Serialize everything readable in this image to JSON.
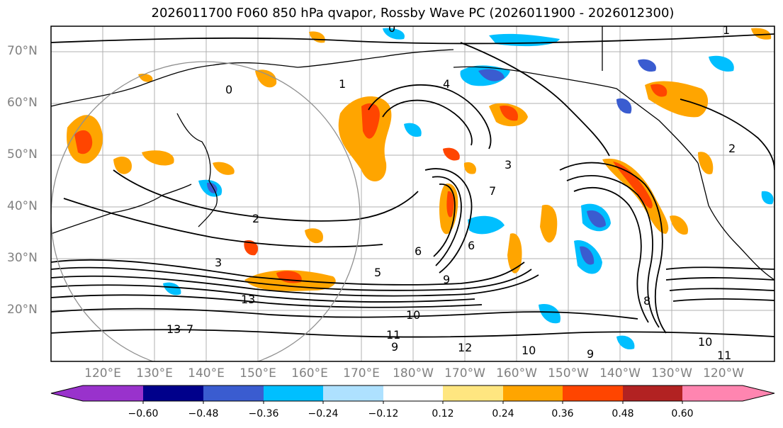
{
  "title": "2026011700 F060 850 hPa qvapor, Rossby Wave PC (2026011900 - 2026012300)",
  "map": {
    "lat_labels": [
      "70°N",
      "60°N",
      "50°N",
      "40°N",
      "30°N",
      "20°N"
    ],
    "lon_labels": [
      "120°E",
      "130°E",
      "140°E",
      "150°E",
      "160°E",
      "170°E",
      "180°W",
      "170°W",
      "160°W",
      "150°W",
      "140°W",
      "130°W",
      "120°W"
    ],
    "contour_labels": [
      "0",
      "1",
      "2",
      "3",
      "4",
      "5",
      "6",
      "7",
      "8",
      "9",
      "10",
      "11",
      "12",
      "13"
    ]
  },
  "colorbar": {
    "colors": [
      "#9932cc",
      "#00008b",
      "#3a5cd0",
      "#00bfff",
      "#aee1ff",
      "#ffffff",
      "#ffe680",
      "#ffa500",
      "#ff4500",
      "#b22222",
      "#ff85b0"
    ],
    "labels": [
      "−0.60",
      "−0.48",
      "−0.36",
      "−0.24",
      "−0.12",
      "0.12",
      "0.24",
      "0.36",
      "0.48",
      "0.60"
    ]
  }
}
